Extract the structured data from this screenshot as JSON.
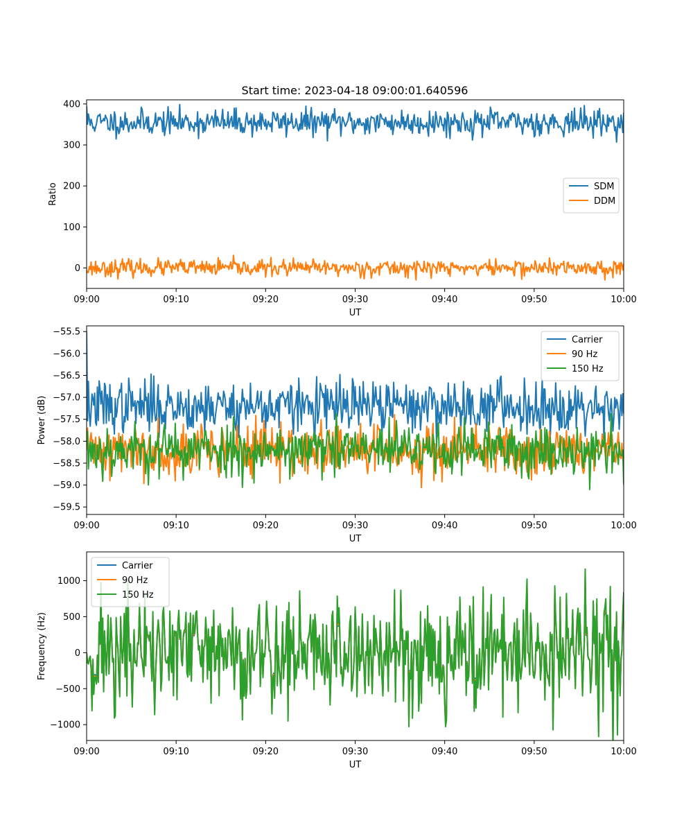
{
  "figure": {
    "title": "Start time: 2023-04-18 09:00:01.640596"
  },
  "chart_data": [
    {
      "type": "line",
      "title": "Start time: 2023-04-18 09:00:01.640596",
      "xlabel": "UT",
      "ylabel": "Ratio",
      "xlim": [
        "09:00",
        "10:00"
      ],
      "ylim": [
        -50,
        410
      ],
      "x_ticks": [
        "09:00",
        "09:10",
        "09:20",
        "09:30",
        "09:40",
        "09:50",
        "10:00"
      ],
      "y_ticks": [
        {
          "value": 0,
          "label": "0"
        },
        {
          "value": 100,
          "label": "100"
        },
        {
          "value": 200,
          "label": "200"
        },
        {
          "value": 300,
          "label": "300"
        },
        {
          "value": 400,
          "label": "400"
        }
      ],
      "legend_position": "center-right",
      "sample_interval_seconds": 6,
      "series": [
        {
          "name": "SDM",
          "color": "#1f77b4",
          "mean": 355,
          "spread": 16,
          "seed": 11,
          "first": 395
        },
        {
          "name": "DDM",
          "color": "#ff7f0e",
          "mean": 0,
          "spread": 10,
          "seed": 23,
          "first": -5
        }
      ]
    },
    {
      "type": "line",
      "xlabel": "UT",
      "ylabel": "Power (dB)",
      "xlim": [
        "09:00",
        "10:00"
      ],
      "ylim": [
        -59.67,
        -55.37
      ],
      "x_ticks": [
        "09:00",
        "09:10",
        "09:20",
        "09:30",
        "09:40",
        "09:50",
        "10:00"
      ],
      "y_ticks": [
        {
          "value": -59.5,
          "label": "−59.5"
        },
        {
          "value": -59.0,
          "label": "−59.0"
        },
        {
          "value": -58.5,
          "label": "−58.5"
        },
        {
          "value": -58.0,
          "label": "−58.0"
        },
        {
          "value": -57.5,
          "label": "−57.5"
        },
        {
          "value": -57.0,
          "label": "−57.0"
        },
        {
          "value": -56.5,
          "label": "−56.5"
        },
        {
          "value": -56.0,
          "label": "−56.0"
        },
        {
          "value": -55.5,
          "label": "−55.5"
        }
      ],
      "legend_position": "upper-right",
      "sample_interval_seconds": 6,
      "series": [
        {
          "name": "Carrier",
          "color": "#1f77b4",
          "mean": -57.2,
          "spread": 0.3,
          "seed": 37,
          "first": -55.5
        },
        {
          "name": "90 Hz",
          "color": "#ff7f0e",
          "mean": -58.2,
          "spread": 0.3,
          "seed": 41,
          "first": -58.2
        },
        {
          "name": "150 Hz",
          "color": "#2ca02c",
          "mean": -58.2,
          "spread": 0.3,
          "seed": 53,
          "first": -58.1
        }
      ]
    },
    {
      "type": "line",
      "xlabel": "UT",
      "ylabel": "Frequency (Hz)",
      "xlim": [
        "09:00",
        "10:00"
      ],
      "ylim": [
        -1220,
        1400
      ],
      "x_ticks": [
        "09:00",
        "09:10",
        "09:20",
        "09:30",
        "09:40",
        "09:50",
        "10:00"
      ],
      "y_ticks": [
        {
          "value": -1000,
          "label": "−1000"
        },
        {
          "value": -500,
          "label": "−500"
        },
        {
          "value": 0,
          "label": "0"
        },
        {
          "value": 500,
          "label": "500"
        },
        {
          "value": 1000,
          "label": "1000"
        }
      ],
      "legend_position": "upper-left",
      "sample_interval_seconds": 6,
      "series": [
        {
          "name": "Carrier",
          "color": "#1f77b4",
          "mean": 0,
          "spread": 380,
          "seed": 71,
          "first": 0
        },
        {
          "name": "90 Hz",
          "color": "#ff7f0e",
          "mean": 0,
          "spread": 380,
          "seed": 71,
          "first": 0
        },
        {
          "name": "150 Hz",
          "color": "#2ca02c",
          "mean": 0,
          "spread": 380,
          "seed": 71,
          "first": 0
        }
      ]
    }
  ]
}
